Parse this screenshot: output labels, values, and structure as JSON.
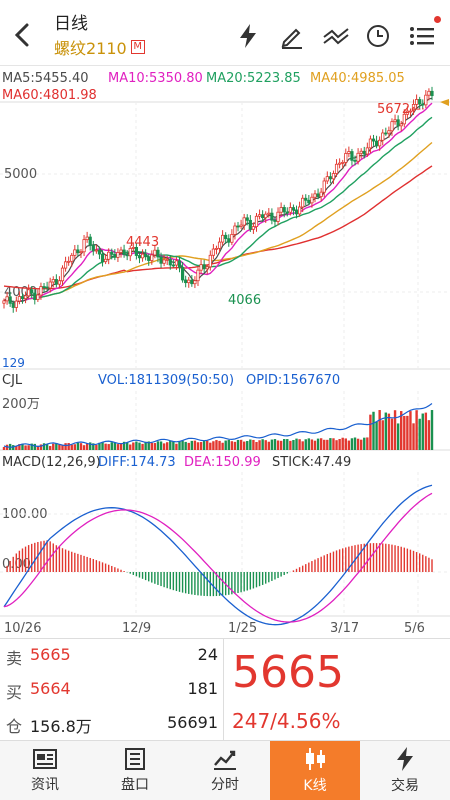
{
  "header": {
    "title": "日线",
    "subtitle": "螺纹2110",
    "market_badge": "M"
  },
  "ma": {
    "ma5": "MA5:5455.40",
    "ma10": "MA10:5350.80",
    "ma20": "MA20:5223.85",
    "ma40": "MA40:4985.05",
    "ma60": "MA60:4801.98"
  },
  "price_axis": [
    "5000",
    "4000"
  ],
  "annotations": {
    "high_recent": "5672",
    "high_mid": "4443",
    "low_mid": "4066",
    "low_start": "129"
  },
  "volume": {
    "name": "CJL",
    "vol": "VOL:1811309(50:50)",
    "opid": "OPID:1567670",
    "axis": "200万"
  },
  "macd": {
    "name": "MACD(12,26,9)",
    "diff": "DIFF:174.73",
    "dea": "DEA:150.99",
    "stick": "STICK:47.49",
    "axis_100": "100.00",
    "axis_0": "0.00"
  },
  "dates": [
    "10/26",
    "12/9",
    "1/25",
    "3/17",
    "5/6"
  ],
  "colors": {
    "up": "#e2372f",
    "down": "#1a9150",
    "ma5": "#4a4a4a",
    "ma10": "#e020c0",
    "ma20": "#20a060",
    "ma40": "#e0a020",
    "ma60": "#e03030",
    "accent": "#f47c2a"
  },
  "quote": {
    "sell_label": "卖",
    "sell_price": "5665",
    "sell_qty": "24",
    "buy_label": "买",
    "buy_price": "5664",
    "buy_qty": "181",
    "oi_label": "仓",
    "oi_value": "156.8万",
    "oi_qty": "56691",
    "last": "5665",
    "change": "247/4.56%"
  },
  "nav": [
    {
      "label": "资讯",
      "icon": "news-icon"
    },
    {
      "label": "盘口",
      "icon": "orderbook-icon"
    },
    {
      "label": "分时",
      "icon": "intraday-icon"
    },
    {
      "label": "K线",
      "icon": "candlestick-icon"
    },
    {
      "label": "交易",
      "icon": "trade-icon"
    }
  ],
  "chart_data": {
    "type": "candlestick",
    "x": [
      "10/26",
      "12/9",
      "1/25",
      "3/17",
      "5/6"
    ],
    "close_path": [
      3900,
      3920,
      3930,
      3960,
      3980,
      4000,
      4030,
      4060,
      4120,
      4200,
      4300,
      4350,
      4443,
      4380,
      4330,
      4300,
      4280,
      4340,
      4350,
      4330,
      4320,
      4310,
      4300,
      4290,
      4280,
      4250,
      4200,
      4120,
      4066,
      4150,
      4230,
      4320,
      4400,
      4450,
      4500,
      4550,
      4600,
      4580,
      4620,
      4650,
      4640,
      4660,
      4680,
      4700,
      4720,
      4750,
      4800,
      4850,
      4900,
      5000,
      5100,
      5150,
      5120,
      5180,
      5200,
      5250,
      5300,
      5350,
      5400,
      5450,
      5500,
      5560,
      5600,
      5672,
      5665
    ],
    "price_levels": [
      4000,
      5000
    ],
    "ma_last": {
      "MA5": 5455.4,
      "MA10": 5350.8,
      "MA20": 5223.85,
      "MA40": 4985.05,
      "MA60": 4801.98
    },
    "volume_axis": "200万",
    "macd_last": {
      "DIFF": 174.73,
      "DEA": 150.99,
      "STICK": 47.49
    }
  }
}
